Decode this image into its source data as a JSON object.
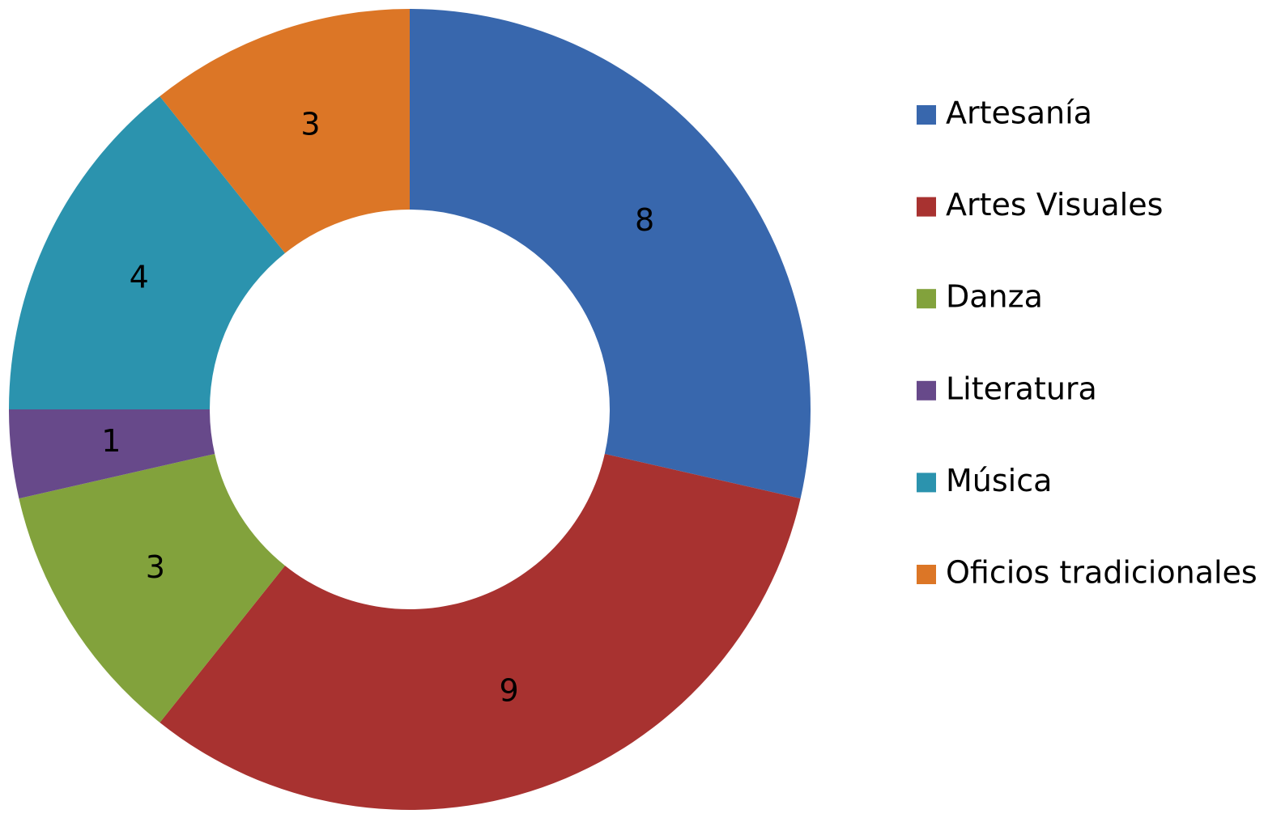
{
  "chart_data": {
    "type": "donut",
    "categories": [
      "Artesanía",
      "Artes Visuales",
      "Danza",
      "Literatura",
      "Música",
      "Oficios tradicionales"
    ],
    "values": [
      8,
      9,
      3,
      1,
      4,
      3
    ],
    "colors": [
      "#3867ad",
      "#a83230",
      "#82a23c",
      "#67498a",
      "#2b93ae",
      "#dc7626"
    ],
    "legend": "right"
  }
}
